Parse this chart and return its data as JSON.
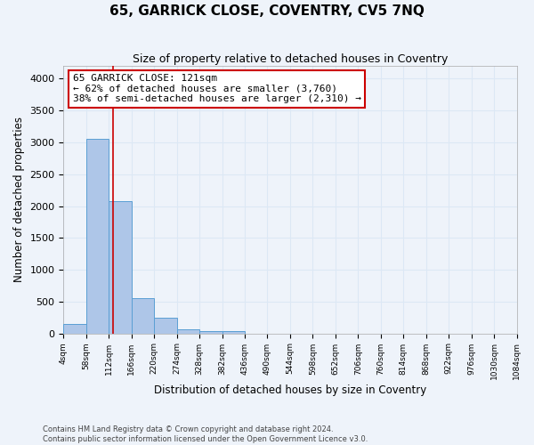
{
  "title": "65, GARRICK CLOSE, COVENTRY, CV5 7NQ",
  "subtitle": "Size of property relative to detached houses in Coventry",
  "xlabel": "Distribution of detached houses by size in Coventry",
  "ylabel": "Number of detached properties",
  "footer_line1": "Contains HM Land Registry data © Crown copyright and database right 2024.",
  "footer_line2": "Contains public sector information licensed under the Open Government Licence v3.0.",
  "bin_edges": [
    4,
    58,
    112,
    166,
    220,
    274,
    328,
    382,
    436,
    490,
    544,
    598,
    652,
    706,
    760,
    814,
    868,
    922,
    976,
    1030,
    1084
  ],
  "bar_heights": [
    150,
    3050,
    2080,
    550,
    240,
    70,
    35,
    30,
    0,
    0,
    0,
    0,
    0,
    0,
    0,
    0,
    0,
    0,
    0,
    0
  ],
  "bar_color": "#aec6e8",
  "bar_edge_color": "#5a9fd4",
  "grid_color": "#dce8f5",
  "background_color": "#eef3fa",
  "vline_x": 121,
  "vline_color": "#cc0000",
  "annotation_text": "65 GARRICK CLOSE: 121sqm\n← 62% of detached houses are smaller (3,760)\n38% of semi-detached houses are larger (2,310) →",
  "annotation_box_color": "white",
  "annotation_box_edge_color": "#cc0000",
  "ylim": [
    0,
    4200
  ],
  "yticks": [
    0,
    500,
    1000,
    1500,
    2000,
    2500,
    3000,
    3500,
    4000
  ]
}
